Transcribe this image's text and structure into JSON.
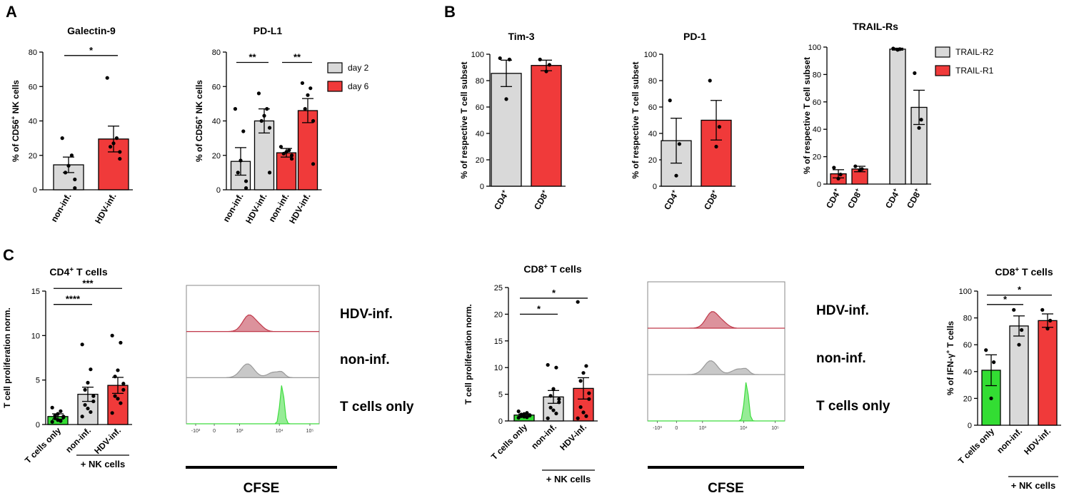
{
  "colors": {
    "grey": "#d9d9d9",
    "red": "#f03a3a",
    "green": "#33dd33",
    "flow_red": "#c0394a",
    "flow_grey": "#9a9a9a",
    "flow_green": "#3fdc3f"
  },
  "panels": {
    "a": "A",
    "b": "B",
    "c": "C"
  },
  "chart_data": [
    {
      "id": "galectin9",
      "type": "bar",
      "title": "Galectin-9",
      "ylabel": "% of CD56+ NK cells",
      "ylim": [
        0,
        80
      ],
      "yticks": [
        0,
        20,
        40,
        60,
        80
      ],
      "categories": [
        "non-inf.",
        "HDV-inf."
      ],
      "values": [
        14.5,
        29.5
      ],
      "sem": [
        4.5,
        7.5
      ],
      "points": [
        [
          30,
          20,
          14,
          10,
          6,
          1
        ],
        [
          65,
          30,
          27,
          25,
          22,
          18
        ]
      ],
      "color_keys": [
        "grey",
        "red"
      ],
      "significance": [
        {
          "from": 0,
          "to": 1,
          "label": "*",
          "level": 78
        }
      ]
    },
    {
      "id": "pdl1",
      "type": "bar",
      "title": "PD-L1",
      "ylabel": "% of CD56+ NK cells",
      "ylim": [
        0,
        80
      ],
      "yticks": [
        0,
        20,
        40,
        60,
        80
      ],
      "categories": [
        "non-inf.",
        "HDV-inf.",
        "non-inf.",
        "HDV-inf."
      ],
      "values": [
        16.5,
        40,
        21.5,
        46
      ],
      "sem": [
        8,
        7,
        2.5,
        7
      ],
      "points": [
        [
          47,
          34,
          17,
          10,
          5,
          1
        ],
        [
          56,
          47,
          43,
          40,
          36,
          10
        ],
        [
          25,
          23,
          22,
          21,
          20,
          18
        ],
        [
          62,
          59,
          55,
          47,
          40,
          15
        ]
      ],
      "color_keys": [
        "grey",
        "grey",
        "red",
        "red"
      ],
      "significance": [
        {
          "from": 0,
          "to": 1,
          "label": "**",
          "level": 74
        },
        {
          "from": 2,
          "to": 3,
          "label": "**",
          "level": 74
        }
      ],
      "legend": [
        {
          "label": "day 2",
          "color_key": "grey"
        },
        {
          "label": "day 6",
          "color_key": "red"
        }
      ]
    },
    {
      "id": "tim3",
      "type": "bar",
      "title": "Tim-3",
      "ylabel": "% of respective T cell subset",
      "ylim": [
        0,
        100
      ],
      "yticks": [
        0,
        20,
        40,
        60,
        80,
        100
      ],
      "categories": [
        "CD4+",
        "CD8+"
      ],
      "values": [
        85.5,
        91.5
      ],
      "sem": [
        10,
        4
      ],
      "points": [
        [
          97,
          96,
          66
        ],
        [
          96,
          92,
          87
        ]
      ],
      "color_keys": [
        "grey",
        "red"
      ]
    },
    {
      "id": "pd1",
      "type": "bar",
      "title": "PD-1",
      "ylabel": "% of respective T cell subset",
      "ylim": [
        0,
        100
      ],
      "yticks": [
        0,
        20,
        40,
        60,
        80,
        100
      ],
      "categories": [
        "CD4+",
        "CD8+"
      ],
      "values": [
        34.5,
        50
      ],
      "sem": [
        17,
        15
      ],
      "points": [
        [
          65,
          32,
          8
        ],
        [
          80,
          45,
          30
        ]
      ],
      "color_keys": [
        "grey",
        "red"
      ]
    },
    {
      "id": "trailrs",
      "type": "bar",
      "title": "TRAIL-Rs",
      "ylabel": "% of respective T cell subset",
      "ylim": [
        0,
        100
      ],
      "yticks": [
        0,
        20,
        40,
        60,
        80,
        100
      ],
      "categories": [
        "CD4+",
        "CD8+",
        "CD4+",
        "CD8+"
      ],
      "values": [
        7.5,
        11,
        98.5,
        56
      ],
      "sem": [
        3,
        2,
        0.7,
        12.5
      ],
      "points": [
        [
          12,
          7,
          4
        ],
        [
          13,
          11,
          10
        ],
        [
          99,
          98.5,
          98
        ],
        [
          81,
          47,
          41
        ]
      ],
      "color_keys": [
        "red",
        "red",
        "grey",
        "grey"
      ],
      "legend": [
        {
          "label": "TRAIL-R2",
          "color_key": "grey"
        },
        {
          "label": "TRAIL-R1",
          "color_key": "red"
        }
      ]
    },
    {
      "id": "cd4prolif",
      "type": "bar",
      "title": "CD4+ T cells",
      "ylabel": "T cell proliferation norm.",
      "ylim": [
        0,
        15
      ],
      "yticks": [
        0,
        5,
        10,
        15
      ],
      "categories": [
        "T cells only",
        "non-inf.",
        "HDV-inf."
      ],
      "values": [
        0.9,
        3.4,
        4.4
      ],
      "sem": [
        0.3,
        0.8,
        0.9
      ],
      "points": [
        [
          1.9,
          1.5,
          1.2,
          1,
          0.9,
          0.8,
          0.7,
          0.5,
          0.4,
          0.3
        ],
        [
          9,
          6.2,
          4.7,
          3.9,
          3.2,
          2.6,
          2.2,
          1.8,
          1.4,
          0.9
        ],
        [
          10,
          9.2,
          6.1,
          5.4,
          4.6,
          3.9,
          3.2,
          2.9,
          2.4,
          1.3
        ]
      ],
      "color_keys": [
        "green",
        "grey",
        "red"
      ],
      "significance": [
        {
          "from": 0,
          "to": 1,
          "label": "****",
          "level": 13.5
        },
        {
          "from": 0,
          "to": 2,
          "label": "***",
          "level": 15.3
        }
      ],
      "group_label": "+ NK cells"
    },
    {
      "id": "cd8prolif",
      "type": "bar",
      "title": "CD8+ T cells",
      "ylabel": "T cell proliferation norm.",
      "ylim": [
        0,
        25
      ],
      "yticks": [
        0,
        5,
        10,
        15,
        20,
        25
      ],
      "categories": [
        "T cells only",
        "non-inf.",
        "HDV-inf."
      ],
      "values": [
        1.1,
        4.5,
        6.1
      ],
      "sem": [
        0.2,
        1.2,
        2
      ],
      "points": [
        [
          1.8,
          1.5,
          1.3,
          1.2,
          1.1,
          1,
          0.9,
          0.8,
          0.7,
          0.6
        ],
        [
          10.5,
          10,
          6,
          4.7,
          4.1,
          3.5,
          2.5,
          2,
          1.4,
          0.5
        ],
        [
          22.3,
          10.3,
          9,
          7.5,
          5.2,
          4.1,
          2.6,
          1.6,
          0.9,
          0.5
        ]
      ],
      "color_keys": [
        "green",
        "grey",
        "red"
      ],
      "significance": [
        {
          "from": 0,
          "to": 1,
          "label": "*",
          "level": 20
        },
        {
          "from": 0,
          "to": 2,
          "label": "*",
          "level": 23
        }
      ],
      "group_label": "+ NK cells"
    },
    {
      "id": "ifng",
      "type": "bar",
      "title": "CD8+ T cells",
      "ylabel": "% of IFN-γ+ T cells",
      "ylim": [
        0,
        100
      ],
      "yticks": [
        0,
        20,
        40,
        60,
        80,
        100
      ],
      "categories": [
        "T cells only",
        "non-inf.",
        "HDV-inf."
      ],
      "values": [
        41,
        74,
        78
      ],
      "sem": [
        11.5,
        7.5,
        5
      ],
      "points": [
        [
          56,
          47,
          20
        ],
        [
          86,
          71,
          60
        ],
        [
          86,
          78,
          72
        ]
      ],
      "color_keys": [
        "green",
        "grey",
        "red"
      ],
      "significance": [
        {
          "from": 0,
          "to": 1,
          "label": "*",
          "level": 90
        },
        {
          "from": 0,
          "to": 2,
          "label": "*",
          "level": 97
        }
      ],
      "group_label": "+ NK cells"
    }
  ],
  "flow": [
    {
      "id": "flow_cd4",
      "labels": [
        "HDV-inf.",
        "non-inf.",
        "T cells only"
      ],
      "xticks": [
        "-10³",
        "0",
        "10³",
        "10⁴",
        "10⁵"
      ],
      "xlabel": "CFSE"
    },
    {
      "id": "flow_cd8",
      "labels": [
        "HDV-inf.",
        "non-inf.",
        "T cells only"
      ],
      "xticks": [
        "-10³",
        "0",
        "10³",
        "10⁴",
        "10⁵"
      ],
      "xlabel": "CFSE"
    }
  ]
}
